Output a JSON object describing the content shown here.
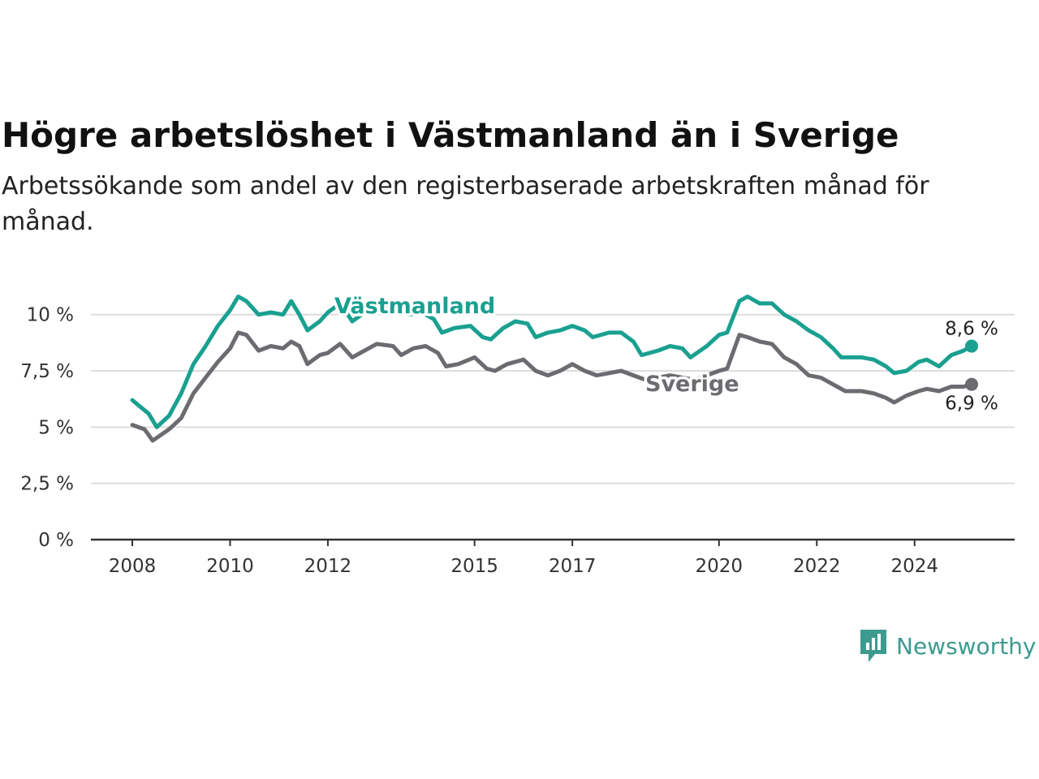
{
  "header": {
    "title": "Högre arbetslöshet i Västmanland än i Sverige",
    "subtitle": "Arbetssökande som andel av den registerbaserade arbetskraften månad för månad."
  },
  "brand": {
    "name": "Newsworthy",
    "icon": "newsworthy-logo-icon",
    "color": "#3d9a8f"
  },
  "chart_data": {
    "type": "line",
    "title": "Högre arbetslöshet i Västmanland än i Sverige",
    "subtitle": "Arbetssökande som andel av den registerbaserade arbetskraften månad för månad.",
    "xlabel": "",
    "ylabel": "",
    "x_range": [
      "2008-01",
      "2025-03"
    ],
    "ylim": [
      0,
      11
    ],
    "y_ticks": [
      {
        "value": 0,
        "label": "0 %"
      },
      {
        "value": 2.5,
        "label": "2,5 %"
      },
      {
        "value": 5,
        "label": "5 %"
      },
      {
        "value": 7.5,
        "label": "7,5 %"
      },
      {
        "value": 10,
        "label": "10 %"
      }
    ],
    "x_ticks": [
      {
        "value": "2008-01",
        "label": "2008"
      },
      {
        "value": "2010-01",
        "label": "2010"
      },
      {
        "value": "2012-01",
        "label": "2012"
      },
      {
        "value": "2015-01",
        "label": "2015"
      },
      {
        "value": "2017-01",
        "label": "2017"
      },
      {
        "value": "2020-01",
        "label": "2020"
      },
      {
        "value": "2022-01",
        "label": "2022"
      },
      {
        "value": "2024-01",
        "label": "2024"
      }
    ],
    "grid": "horizontal",
    "legend": "direct labels on lines",
    "series": [
      {
        "name": "Västmanland",
        "color": "#1aa090",
        "end_label": "8,6 %",
        "points": [
          [
            "2008-01",
            6.2
          ],
          [
            "2008-03",
            5.9
          ],
          [
            "2008-05",
            5.6
          ],
          [
            "2008-07",
            5.0
          ],
          [
            "2008-10",
            5.5
          ],
          [
            "2009-01",
            6.5
          ],
          [
            "2009-04",
            7.8
          ],
          [
            "2009-07",
            8.6
          ],
          [
            "2009-10",
            9.5
          ],
          [
            "2010-01",
            10.2
          ],
          [
            "2010-03",
            10.8
          ],
          [
            "2010-05",
            10.6
          ],
          [
            "2010-08",
            10.0
          ],
          [
            "2010-11",
            10.1
          ],
          [
            "2011-02",
            10.0
          ],
          [
            "2011-04",
            10.6
          ],
          [
            "2011-06",
            10.0
          ],
          [
            "2011-08",
            9.3
          ],
          [
            "2011-11",
            9.7
          ],
          [
            "2012-01",
            10.1
          ],
          [
            "2012-04",
            10.5
          ],
          [
            "2012-07",
            9.7
          ],
          [
            "2012-10",
            10.1
          ],
          [
            "2013-01",
            10.5
          ],
          [
            "2013-05",
            10.2
          ],
          [
            "2013-09",
            10.0
          ],
          [
            "2013-12",
            10.1
          ],
          [
            "2014-03",
            9.8
          ],
          [
            "2014-05",
            9.2
          ],
          [
            "2014-08",
            9.4
          ],
          [
            "2014-12",
            9.5
          ],
          [
            "2015-03",
            9.0
          ],
          [
            "2015-05",
            8.9
          ],
          [
            "2015-08",
            9.4
          ],
          [
            "2015-11",
            9.7
          ],
          [
            "2016-02",
            9.6
          ],
          [
            "2016-04",
            9.0
          ],
          [
            "2016-07",
            9.2
          ],
          [
            "2016-10",
            9.3
          ],
          [
            "2017-01",
            9.5
          ],
          [
            "2017-04",
            9.3
          ],
          [
            "2017-06",
            9.0
          ],
          [
            "2017-10",
            9.2
          ],
          [
            "2018-01",
            9.2
          ],
          [
            "2018-04",
            8.8
          ],
          [
            "2018-06",
            8.2
          ],
          [
            "2018-10",
            8.4
          ],
          [
            "2019-01",
            8.6
          ],
          [
            "2019-04",
            8.5
          ],
          [
            "2019-06",
            8.1
          ],
          [
            "2019-10",
            8.6
          ],
          [
            "2020-01",
            9.1
          ],
          [
            "2020-03",
            9.2
          ],
          [
            "2020-06",
            10.6
          ],
          [
            "2020-08",
            10.8
          ],
          [
            "2020-11",
            10.5
          ],
          [
            "2021-02",
            10.5
          ],
          [
            "2021-05",
            10.0
          ],
          [
            "2021-08",
            9.7
          ],
          [
            "2021-11",
            9.3
          ],
          [
            "2022-02",
            9.0
          ],
          [
            "2022-05",
            8.5
          ],
          [
            "2022-07",
            8.1
          ],
          [
            "2022-12",
            8.1
          ],
          [
            "2023-03",
            8.0
          ],
          [
            "2023-06",
            7.7
          ],
          [
            "2023-08",
            7.4
          ],
          [
            "2023-11",
            7.5
          ],
          [
            "2024-02",
            7.9
          ],
          [
            "2024-04",
            8.0
          ],
          [
            "2024-07",
            7.7
          ],
          [
            "2024-10",
            8.2
          ],
          [
            "2025-01",
            8.4
          ],
          [
            "2025-03",
            8.6
          ]
        ]
      },
      {
        "name": "Sverige",
        "color": "#6b6b70",
        "end_label": "6,9 %",
        "points": [
          [
            "2008-01",
            5.1
          ],
          [
            "2008-04",
            4.9
          ],
          [
            "2008-06",
            4.4
          ],
          [
            "2008-10",
            4.9
          ],
          [
            "2009-01",
            5.4
          ],
          [
            "2009-04",
            6.5
          ],
          [
            "2009-07",
            7.2
          ],
          [
            "2009-10",
            7.9
          ],
          [
            "2010-01",
            8.5
          ],
          [
            "2010-03",
            9.2
          ],
          [
            "2010-05",
            9.1
          ],
          [
            "2010-08",
            8.4
          ],
          [
            "2010-11",
            8.6
          ],
          [
            "2011-02",
            8.5
          ],
          [
            "2011-04",
            8.8
          ],
          [
            "2011-06",
            8.6
          ],
          [
            "2011-08",
            7.8
          ],
          [
            "2011-11",
            8.2
          ],
          [
            "2012-01",
            8.3
          ],
          [
            "2012-04",
            8.7
          ],
          [
            "2012-07",
            8.1
          ],
          [
            "2012-10",
            8.4
          ],
          [
            "2013-01",
            8.7
          ],
          [
            "2013-05",
            8.6
          ],
          [
            "2013-07",
            8.2
          ],
          [
            "2013-10",
            8.5
          ],
          [
            "2014-01",
            8.6
          ],
          [
            "2014-04",
            8.3
          ],
          [
            "2014-06",
            7.7
          ],
          [
            "2014-09",
            7.8
          ],
          [
            "2015-01",
            8.1
          ],
          [
            "2015-04",
            7.6
          ],
          [
            "2015-06",
            7.5
          ],
          [
            "2015-09",
            7.8
          ],
          [
            "2016-01",
            8.0
          ],
          [
            "2016-04",
            7.5
          ],
          [
            "2016-07",
            7.3
          ],
          [
            "2016-10",
            7.5
          ],
          [
            "2017-01",
            7.8
          ],
          [
            "2017-04",
            7.5
          ],
          [
            "2017-07",
            7.3
          ],
          [
            "2017-10",
            7.4
          ],
          [
            "2018-01",
            7.5
          ],
          [
            "2018-04",
            7.3
          ],
          [
            "2018-07",
            7.1
          ],
          [
            "2018-10",
            7.2
          ],
          [
            "2019-01",
            7.3
          ],
          [
            "2019-04",
            7.2
          ],
          [
            "2019-07",
            7.1
          ],
          [
            "2019-10",
            7.3
          ],
          [
            "2020-01",
            7.5
          ],
          [
            "2020-03",
            7.6
          ],
          [
            "2020-06",
            9.1
          ],
          [
            "2020-08",
            9.0
          ],
          [
            "2020-11",
            8.8
          ],
          [
            "2021-02",
            8.7
          ],
          [
            "2021-05",
            8.1
          ],
          [
            "2021-08",
            7.8
          ],
          [
            "2021-11",
            7.3
          ],
          [
            "2022-02",
            7.2
          ],
          [
            "2022-05",
            6.9
          ],
          [
            "2022-08",
            6.6
          ],
          [
            "2022-12",
            6.6
          ],
          [
            "2023-03",
            6.5
          ],
          [
            "2023-06",
            6.3
          ],
          [
            "2023-08",
            6.1
          ],
          [
            "2023-11",
            6.4
          ],
          [
            "2024-02",
            6.6
          ],
          [
            "2024-04",
            6.7
          ],
          [
            "2024-07",
            6.6
          ],
          [
            "2024-10",
            6.8
          ],
          [
            "2025-01",
            6.8
          ],
          [
            "2025-03",
            6.9
          ]
        ]
      }
    ]
  }
}
